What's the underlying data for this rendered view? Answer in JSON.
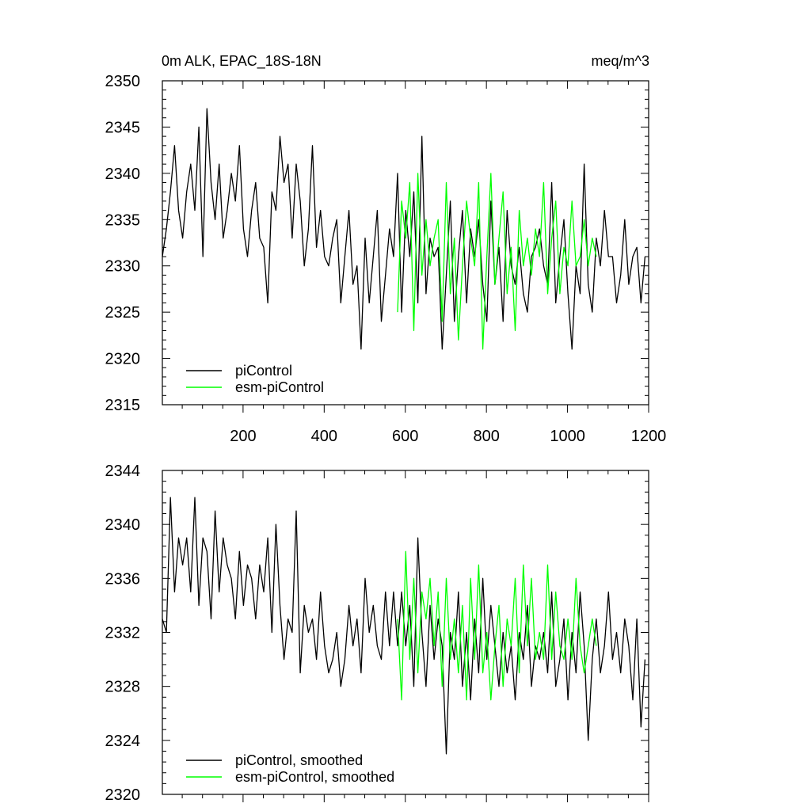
{
  "chart_data": [
    {
      "type": "line",
      "title_left": "0m ALK, EPAC_18S-18N",
      "title_right": "meq/m^3",
      "xlabel": "",
      "ylabel": "",
      "xlim": [
        1,
        1200
      ],
      "ylim": [
        2315,
        2350
      ],
      "x_ticks": [
        200,
        400,
        600,
        800,
        1000,
        1200
      ],
      "x_tick_labels": [
        "200",
        "400",
        "600",
        "800",
        "1000",
        "1200"
      ],
      "y_ticks": [
        2315,
        2320,
        2325,
        2330,
        2335,
        2340,
        2345,
        2350
      ],
      "y_tick_labels": [
        "2315",
        "2320",
        "2325",
        "2330",
        "2335",
        "2340",
        "2345",
        "2350"
      ],
      "legend_position": "bottom-left",
      "series": [
        {
          "name": "piControl",
          "color": "#000000",
          "x_start": 1,
          "x_step": 10,
          "values": [
            2331,
            2334,
            2338,
            2343,
            2336,
            2333,
            2338,
            2341,
            2336,
            2345,
            2331,
            2347,
            2339,
            2335,
            2341,
            2333,
            2336,
            2340,
            2337,
            2343,
            2334,
            2331,
            2336,
            2339,
            2333,
            2332,
            2326,
            2338,
            2336,
            2344,
            2339,
            2341,
            2333,
            2341,
            2337,
            2330,
            2334,
            2343,
            2332,
            2336,
            2331,
            2330,
            2333,
            2335,
            2326,
            2331,
            2336,
            2328,
            2330,
            2321,
            2333,
            2326,
            2331,
            2336,
            2324,
            2329,
            2334,
            2331,
            2340,
            2325,
            2336,
            2331,
            2338,
            2326,
            2344,
            2327,
            2333,
            2331,
            2332,
            2321,
            2329,
            2337,
            2324,
            2331,
            2336,
            2326,
            2334,
            2331,
            2335,
            2328,
            2324,
            2337,
            2328,
            2332,
            2324,
            2336,
            2330,
            2328,
            2332,
            2327,
            2325,
            2331,
            2332,
            2334,
            2330,
            2328,
            2339,
            2326,
            2331,
            2335,
            2327,
            2321,
            2330,
            2327,
            2341,
            2328,
            2325,
            2333,
            2330,
            2336,
            2331,
            2331,
            2326,
            2329,
            2335,
            2328,
            2331,
            2332,
            2326,
            2331
          ]
        },
        {
          "name": "esm-piControl",
          "color": "#00ff00",
          "x_start": 581,
          "x_step": 10,
          "values": [
            2325,
            2337,
            2333,
            2339,
            2323,
            2340,
            2329,
            2335,
            2330,
            2333,
            2335,
            2324,
            2339,
            2327,
            2333,
            2322,
            2330,
            2337,
            2333,
            2330,
            2339,
            2321,
            2331,
            2340,
            2328,
            2333,
            2338,
            2327,
            2332,
            2323,
            2336,
            2330,
            2333,
            2329,
            2334,
            2331,
            2339,
            2327,
            2333,
            2337,
            2327,
            2332,
            2330,
            2337,
            2330,
            2331,
            2335,
            2330,
            2333,
            2331
          ]
        }
      ]
    },
    {
      "type": "line",
      "title": "",
      "xlabel": "",
      "ylabel": "",
      "xlim": [
        1,
        1200
      ],
      "ylim": [
        2320,
        2344
      ],
      "x_ticks": [
        200,
        400,
        600,
        800,
        1000,
        1200
      ],
      "y_ticks": [
        2320,
        2324,
        2328,
        2332,
        2336,
        2340,
        2344
      ],
      "y_tick_labels": [
        "2320",
        "2324",
        "2328",
        "2332",
        "2336",
        "2340",
        "2344"
      ],
      "legend_position": "bottom-left",
      "series": [
        {
          "name": "piControl, smoothed",
          "color": "#000000",
          "x_start": 1,
          "x_step": 10,
          "values": [
            2333,
            2332,
            2342,
            2335,
            2339,
            2337,
            2339,
            2335,
            2342,
            2334,
            2339,
            2338,
            2333,
            2341,
            2335,
            2339,
            2337,
            2336,
            2333,
            2338,
            2334,
            2337,
            2336,
            2333,
            2337,
            2335,
            2339,
            2332,
            2340,
            2334,
            2330,
            2333,
            2332,
            2341,
            2329,
            2334,
            2332,
            2333,
            2330,
            2335,
            2331,
            2329,
            2330,
            2332,
            2328,
            2330,
            2334,
            2331,
            2333,
            2329,
            2336,
            2332,
            2334,
            2331,
            2330,
            2335,
            2331,
            2335,
            2331,
            2335,
            2331,
            2334,
            2328,
            2339,
            2332,
            2328,
            2334,
            2330,
            2333,
            2331,
            2323,
            2332,
            2330,
            2335,
            2328,
            2332,
            2327,
            2333,
            2329,
            2336,
            2330,
            2334,
            2331,
            2328,
            2332,
            2329,
            2331,
            2327,
            2332,
            2330,
            2334,
            2328,
            2331,
            2330,
            2332,
            2329,
            2335,
            2328,
            2330,
            2333,
            2327,
            2332,
            2329,
            2335,
            2331,
            2324,
            2330,
            2333,
            2329,
            2331,
            2335,
            2330,
            2332,
            2329,
            2333,
            2331,
            2327,
            2333,
            2325,
            2330
          ]
        },
        {
          "name": "esm-piControl, smoothed",
          "color": "#00ff00",
          "x_start": 581,
          "x_step": 10,
          "values": [
            2333,
            2327,
            2338,
            2330,
            2336,
            2329,
            2335,
            2333,
            2336,
            2331,
            2335,
            2328,
            2336,
            2330,
            2333,
            2329,
            2334,
            2327,
            2336,
            2330,
            2337,
            2329,
            2332,
            2327,
            2331,
            2334,
            2328,
            2333,
            2331,
            2336,
            2329,
            2337,
            2331,
            2336,
            2330,
            2332,
            2330,
            2337,
            2330,
            2335,
            2331,
            2330,
            2333,
            2330,
            2336,
            2331,
            2329,
            2331,
            2333,
            2331
          ]
        }
      ]
    }
  ]
}
